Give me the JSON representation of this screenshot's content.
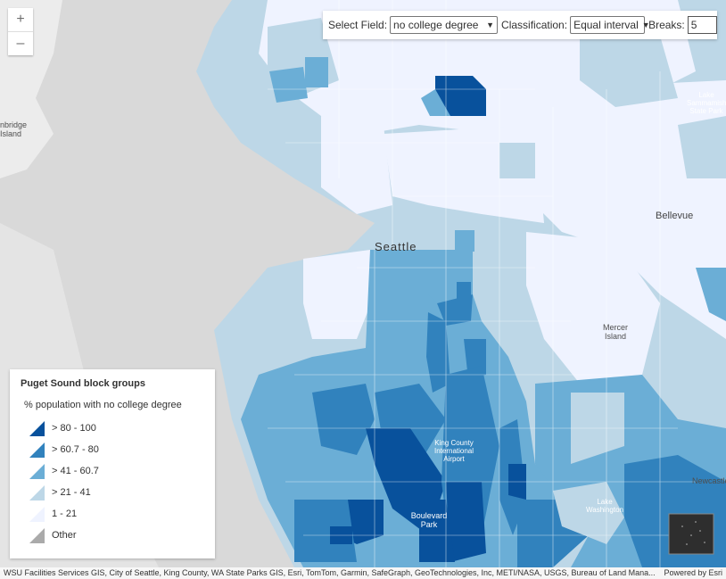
{
  "toolbar": {
    "field_label": "Select Field:",
    "field_value": "no college degree",
    "class_label": "Classification:",
    "class_value": "Equal interval",
    "breaks_label": "Breaks:",
    "breaks_value": "5"
  },
  "zoom": {
    "in": "+",
    "out": "–"
  },
  "legend": {
    "title": "Puget Sound block groups",
    "subtitle": "% population with no college degree",
    "classes": [
      {
        "label": "> 80 - 100",
        "color": "#08519c"
      },
      {
        "label": "> 60.7 - 80",
        "color": "#3182bd"
      },
      {
        "label": "> 41 - 60.7",
        "color": "#6baed6"
      },
      {
        "label": "> 21 - 41",
        "color": "#bdd7e7"
      },
      {
        "label": "1 - 21",
        "color": "#eff3ff"
      },
      {
        "label": "Other",
        "color": "#aaaaaa"
      }
    ]
  },
  "places": {
    "seattle": "Seattle",
    "bellevue": "Bellevue",
    "mercer": "Mercer Island",
    "bainbridge": "nbridge Island",
    "airport": "King County International Airport",
    "boulevard": "Boulevard Park",
    "newcastle": "Newcastle",
    "statepark": "Lake Sammamish State Park",
    "lake_boren": "Lake Washington"
  },
  "attribution": {
    "text": "WSU Facilities Services GIS, City of Seattle, King County, WA State Parks GIS, Esri, TomTom, Garmin, SafeGraph, GeoTechnologies, Inc, METI/NASA, USGS, Bureau of Land Mana...",
    "powered": "Powered by Esri"
  }
}
